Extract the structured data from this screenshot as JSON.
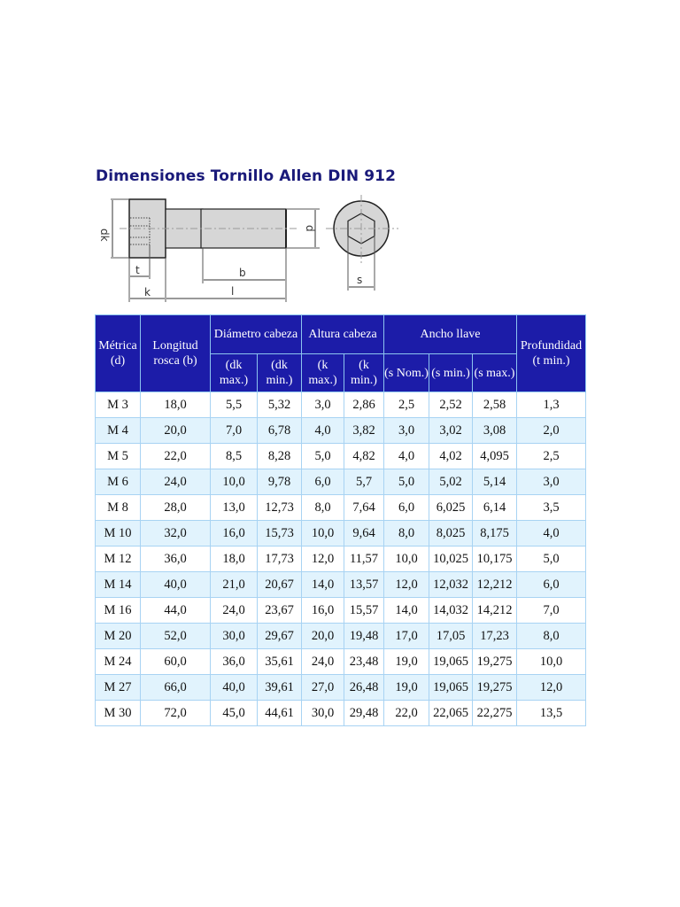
{
  "title": "Dimensiones Tornillo Allen DIN 912",
  "diagram": {
    "labels": {
      "dk": "dk",
      "d": "d",
      "t": "t",
      "k": "k",
      "b": "b",
      "l": "l",
      "s": "s"
    }
  },
  "table": {
    "headers": {
      "metrica": "Métrica (d)",
      "longitud": "Longitud rosca (b)",
      "diametro": "Diámetro cabeza",
      "altura": "Altura cabeza",
      "ancho": "Ancho llave",
      "profundidad": "Profundidad (t min.)",
      "sub": [
        "(dk max.)",
        "(dk min.)",
        "(k max.)",
        "(k min.)",
        "(s Nom.)",
        "(s min.)",
        "(s max.)"
      ]
    },
    "rows": [
      [
        "M 3",
        "18,0",
        "5,5",
        "5,32",
        "3,0",
        "2,86",
        "2,5",
        "2,52",
        "2,58",
        "1,3"
      ],
      [
        "M 4",
        "20,0",
        "7,0",
        "6,78",
        "4,0",
        "3,82",
        "3,0",
        "3,02",
        "3,08",
        "2,0"
      ],
      [
        "M 5",
        "22,0",
        "8,5",
        "8,28",
        "5,0",
        "4,82",
        "4,0",
        "4,02",
        "4,095",
        "2,5"
      ],
      [
        "M 6",
        "24,0",
        "10,0",
        "9,78",
        "6,0",
        "5,7",
        "5,0",
        "5,02",
        "5,14",
        "3,0"
      ],
      [
        "M 8",
        "28,0",
        "13,0",
        "12,73",
        "8,0",
        "7,64",
        "6,0",
        "6,025",
        "6,14",
        "3,5"
      ],
      [
        "M 10",
        "32,0",
        "16,0",
        "15,73",
        "10,0",
        "9,64",
        "8,0",
        "8,025",
        "8,175",
        "4,0"
      ],
      [
        "M 12",
        "36,0",
        "18,0",
        "17,73",
        "12,0",
        "11,57",
        "10,0",
        "10,025",
        "10,175",
        "5,0"
      ],
      [
        "M 14",
        "40,0",
        "21,0",
        "20,67",
        "14,0",
        "13,57",
        "12,0",
        "12,032",
        "12,212",
        "6,0"
      ],
      [
        "M 16",
        "44,0",
        "24,0",
        "23,67",
        "16,0",
        "15,57",
        "14,0",
        "14,032",
        "14,212",
        "7,0"
      ],
      [
        "M 20",
        "52,0",
        "30,0",
        "29,67",
        "20,0",
        "19,48",
        "17,0",
        "17,05",
        "17,23",
        "8,0"
      ],
      [
        "M 24",
        "60,0",
        "36,0",
        "35,61",
        "24,0",
        "23,48",
        "19,0",
        "19,065",
        "19,275",
        "10,0"
      ],
      [
        "M 27",
        "66,0",
        "40,0",
        "39,61",
        "27,0",
        "26,48",
        "19,0",
        "19,065",
        "19,275",
        "12,0"
      ],
      [
        "M 30",
        "72,0",
        "45,0",
        "44,61",
        "30,0",
        "29,48",
        "22,0",
        "22,065",
        "22,275",
        "13,5"
      ]
    ]
  },
  "colors": {
    "title": "#1a1a7a",
    "header_bg": "#1c1ca8",
    "row_alt": "#e1f3fd",
    "border": "#a8d3f3"
  }
}
